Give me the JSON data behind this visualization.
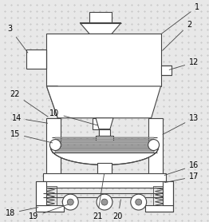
{
  "bg_color": "#e8e8e8",
  "line_color": "#444444",
  "fig_width": 2.62,
  "fig_height": 2.78,
  "label_fontsize": 7.0
}
